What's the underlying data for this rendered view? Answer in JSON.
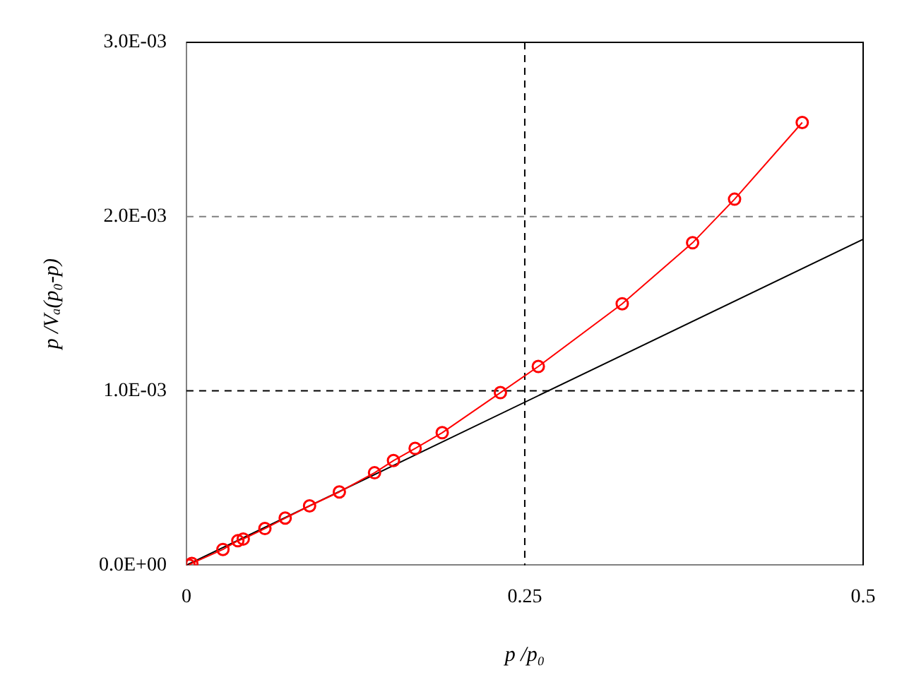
{
  "chart_data": {
    "type": "line",
    "xlabel": "p /p₀",
    "ylabel": "p /Vₐ(p₀-p)",
    "xlim": [
      0,
      0.5
    ],
    "xticks": [
      0,
      0.25,
      0.5
    ],
    "ylim": [
      0,
      0.003
    ],
    "yticks": [
      {
        "value": 0,
        "label": "0.0E+00"
      },
      {
        "value": 0.001,
        "label": "1.0E-03"
      },
      {
        "value": 0.002,
        "label": "2.0E-03"
      },
      {
        "value": 0.003,
        "label": "3.0E-03"
      }
    ],
    "grid": false,
    "legend": false,
    "series": [
      {
        "color": "#ff0000",
        "marker": "circle",
        "x": [
          0.002,
          0.004,
          0.027,
          0.038,
          0.042,
          0.058,
          0.073,
          0.091,
          0.113,
          0.139,
          0.153,
          0.169,
          0.189,
          0.232,
          0.26,
          0.322,
          0.374,
          0.405,
          0.455
        ],
        "values": [
          0,
          1e-05,
          9e-05,
          0.00014,
          0.00015,
          0.00021,
          0.00027,
          0.00034,
          0.00042,
          0.00053,
          0.0006,
          0.00067,
          0.00076,
          0.00099,
          0.00114,
          0.0015,
          0.00185,
          0.0021,
          0.00254
        ]
      },
      {
        "color": "#000000",
        "marker": "none",
        "x": [
          0,
          0.5
        ],
        "values": [
          0,
          0.00187
        ]
      }
    ],
    "ref_lines": [
      {
        "axis": "x",
        "value": 0.25,
        "color": "#000000",
        "line_style": "dashed"
      },
      {
        "axis": "y",
        "value": 0.001,
        "color": "#000000",
        "line_style": "dashed"
      },
      {
        "axis": "y",
        "value": 0.002,
        "color": "#808080",
        "line_style": "dashed"
      }
    ]
  }
}
